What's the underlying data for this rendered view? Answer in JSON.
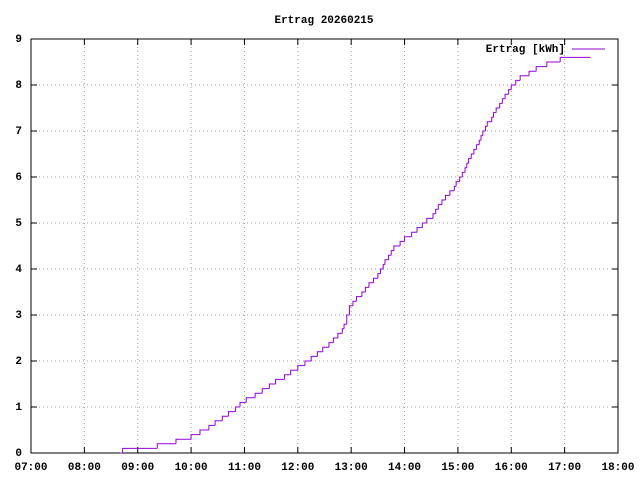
{
  "chart_data": {
    "type": "line",
    "step": true,
    "title": "Ertrag 20260215",
    "x": [
      "08:40",
      "08:43",
      "09:22",
      "09:43",
      "10:00",
      "10:10",
      "10:20",
      "10:27",
      "10:35",
      "10:42",
      "10:50",
      "10:55",
      "11:02",
      "11:12",
      "11:20",
      "11:28",
      "11:35",
      "11:45",
      "11:52",
      "12:00",
      "12:08",
      "12:15",
      "12:22",
      "12:28",
      "12:35",
      "12:40",
      "12:45",
      "12:50",
      "12:52",
      "12:55",
      "12:58",
      "13:02",
      "13:06",
      "13:12",
      "13:16",
      "13:20",
      "13:25",
      "13:30",
      "13:33",
      "13:36",
      "13:38",
      "13:42",
      "13:45",
      "13:48",
      "13:55",
      "14:00",
      "14:08",
      "14:14",
      "14:20",
      "14:25",
      "14:32",
      "14:35",
      "14:38",
      "14:42",
      "14:46",
      "14:51",
      "14:56",
      "14:58",
      "15:02",
      "15:05",
      "15:08",
      "15:10",
      "15:12",
      "15:15",
      "15:18",
      "15:21",
      "15:24",
      "15:26",
      "15:28",
      "15:31",
      "15:33",
      "15:38",
      "15:40",
      "15:43",
      "15:47",
      "15:50",
      "15:53",
      "15:57",
      "16:00",
      "16:05",
      "16:10",
      "16:20",
      "16:28",
      "16:40",
      "16:55",
      "17:29"
    ],
    "series": [
      {
        "name": "Ertrag [kWh]",
        "color": "#9400d3",
        "values": [
          0,
          0.1,
          0.2,
          0.3,
          0.4,
          0.5,
          0.6,
          0.7,
          0.8,
          0.9,
          1.0,
          1.1,
          1.2,
          1.3,
          1.4,
          1.5,
          1.6,
          1.7,
          1.8,
          1.9,
          2.0,
          2.1,
          2.2,
          2.3,
          2.4,
          2.5,
          2.6,
          2.7,
          2.8,
          3.0,
          3.2,
          3.3,
          3.4,
          3.5,
          3.6,
          3.7,
          3.8,
          3.9,
          4.0,
          4.1,
          4.2,
          4.3,
          4.4,
          4.5,
          4.6,
          4.7,
          4.8,
          4.9,
          5.0,
          5.1,
          5.2,
          5.3,
          5.4,
          5.5,
          5.6,
          5.7,
          5.8,
          5.9,
          6.0,
          6.1,
          6.2,
          6.3,
          6.4,
          6.5,
          6.6,
          6.7,
          6.8,
          6.9,
          7.0,
          7.1,
          7.2,
          7.3,
          7.4,
          7.5,
          7.6,
          7.7,
          7.8,
          7.9,
          8.0,
          8.1,
          8.2,
          8.3,
          8.4,
          8.5,
          8.6,
          8.6
        ]
      }
    ],
    "xlim": [
      "07:00",
      "18:00"
    ],
    "xticks": [
      "07:00",
      "08:00",
      "09:00",
      "10:00",
      "11:00",
      "12:00",
      "13:00",
      "14:00",
      "15:00",
      "16:00",
      "17:00",
      "18:00"
    ],
    "ylim": [
      0,
      9
    ],
    "yticks": [
      0,
      1,
      2,
      3,
      4,
      5,
      6,
      7,
      8,
      9
    ],
    "grid": true,
    "legend": "top-right"
  }
}
